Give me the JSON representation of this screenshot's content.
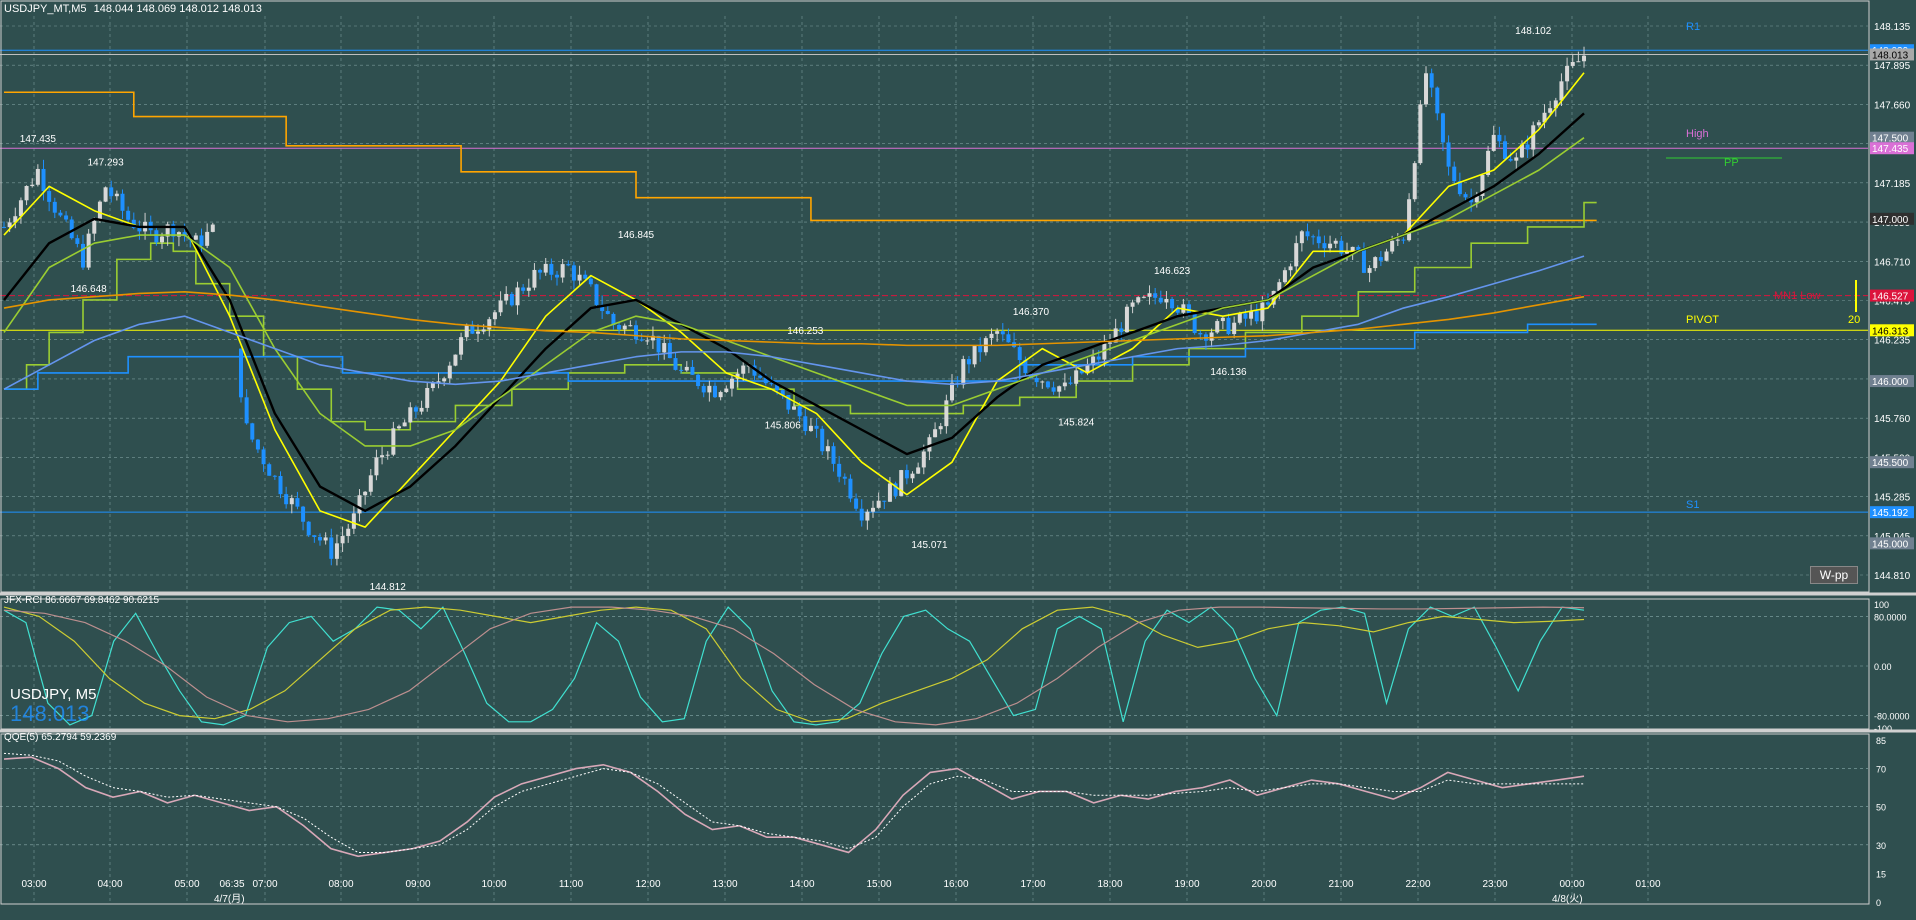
{
  "main_header": {
    "symbol": "USDJPY_MT,M5",
    "ohlc": "148.044 148.069 148.012 148.013"
  },
  "symbol_overlay": {
    "label": "USDJPY, M5",
    "price": "148.013"
  },
  "wpp_button": "W-pp",
  "rci_header": "JFX-RCI 86.6667 69.8462 90.6215",
  "qqe_header": "QQE(5) 65.2794 59.2369",
  "x_axis": {
    "labels": [
      "03:00",
      "04:00",
      "05:00",
      "06:35",
      "07:00",
      "08:00",
      "09:00",
      "10:00",
      "11:00",
      "12:00",
      "13:00",
      "14:00",
      "15:00",
      "16:00",
      "17:00",
      "18:00",
      "19:00",
      "20:00",
      "21:00",
      "22:00",
      "23:00",
      "00:00",
      "01:00"
    ],
    "date_labels": [
      "4/7(月)",
      "4/8(火)"
    ]
  },
  "price_axis": {
    "ticks": [
      "148.135",
      "147.895",
      "147.660",
      "147.425",
      "147.185",
      "146.950",
      "146.710",
      "146.475",
      "146.235",
      "146.000",
      "145.760",
      "145.520",
      "145.285",
      "145.045",
      "144.810"
    ]
  },
  "price_tags": [
    {
      "text": "148.039",
      "color": "#1e90ff"
    },
    {
      "text": "148.013",
      "color": "#a9a9a9"
    },
    {
      "text": "147.500",
      "color": "#708090"
    },
    {
      "text": "147.435",
      "color": "#da70d6"
    },
    {
      "text": "147.000",
      "color": "#2f2f2f"
    },
    {
      "text": "146.527",
      "color": "#dc143c"
    },
    {
      "text": "146.313",
      "color": "#ffff00"
    },
    {
      "text": "146.000",
      "color": "#708090"
    },
    {
      "text": "145.500",
      "color": "#708090"
    },
    {
      "text": "145.192",
      "color": "#1e90ff"
    },
    {
      "text": "145.000",
      "color": "#708090"
    }
  ],
  "pivot_labels": {
    "r1": "R1",
    "high": "High",
    "pp": "PP",
    "mn_low": "MN1 Low",
    "pivot": "PIVOT",
    "s1": "S1",
    "pivot_count": "20"
  },
  "rci_axis": [
    "100",
    "80.0000",
    "0.00",
    "-80.0000",
    "-100"
  ],
  "qqe_axis": [
    "85",
    "70",
    "50",
    "30",
    "15",
    "0"
  ],
  "chart_data": {
    "type": "candlestick",
    "title": "USDJPY_MT,M5",
    "ylim": [
      144.7,
      148.25
    ],
    "swing_labels": [
      {
        "x": "03:00",
        "text": "147.435",
        "value": 147.435
      },
      {
        "x": "04:00",
        "text": "147.293",
        "value": 147.293
      },
      {
        "x": "03:45",
        "text": "146.648",
        "value": 146.648
      },
      {
        "x": "08:10",
        "text": "144.812",
        "value": 144.812
      },
      {
        "x": "11:50",
        "text": "146.845",
        "value": 146.845
      },
      {
        "x": "14:20",
        "text": "146.253",
        "value": 146.253
      },
      {
        "x": "14:00",
        "text": "145.806",
        "value": 145.806
      },
      {
        "x": "16:10",
        "text": "145.071",
        "value": 145.071
      },
      {
        "x": "17:40",
        "text": "146.370",
        "value": 146.37
      },
      {
        "x": "18:20",
        "text": "145.824",
        "value": 145.824
      },
      {
        "x": "19:45",
        "text": "146.623",
        "value": 146.623
      },
      {
        "x": "20:35",
        "text": "146.136",
        "value": 146.136
      },
      {
        "x": "01:05",
        "text": "148.102",
        "value": 148.102
      }
    ],
    "close_path": [
      {
        "t": 0,
        "v": 146.95
      },
      {
        "t": 6,
        "v": 147.3
      },
      {
        "t": 10,
        "v": 147.0
      },
      {
        "t": 14,
        "v": 146.75
      },
      {
        "t": 18,
        "v": 147.2
      },
      {
        "t": 22,
        "v": 147.0
      },
      {
        "t": 26,
        "v": 146.9
      },
      {
        "t": 30,
        "v": 146.95
      },
      {
        "t": 34,
        "v": 146.85
      },
      {
        "t": 38,
        "v": 146.95
      },
      {
        "t": 43,
        "v": 145.7
      },
      {
        "t": 48,
        "v": 145.4
      },
      {
        "t": 54,
        "v": 145.1
      },
      {
        "t": 58,
        "v": 144.95
      },
      {
        "t": 62,
        "v": 145.15
      },
      {
        "t": 66,
        "v": 145.5
      },
      {
        "t": 70,
        "v": 145.7
      },
      {
        "t": 76,
        "v": 145.95
      },
      {
        "t": 82,
        "v": 146.3
      },
      {
        "t": 88,
        "v": 146.45
      },
      {
        "t": 94,
        "v": 146.65
      },
      {
        "t": 100,
        "v": 146.7
      },
      {
        "t": 104,
        "v": 146.55
      },
      {
        "t": 108,
        "v": 146.35
      },
      {
        "t": 114,
        "v": 146.3
      },
      {
        "t": 120,
        "v": 146.05
      },
      {
        "t": 126,
        "v": 145.95
      },
      {
        "t": 132,
        "v": 146.1
      },
      {
        "t": 136,
        "v": 145.95
      },
      {
        "t": 142,
        "v": 145.75
      },
      {
        "t": 148,
        "v": 145.45
      },
      {
        "t": 152,
        "v": 145.2
      },
      {
        "t": 158,
        "v": 145.35
      },
      {
        "t": 164,
        "v": 145.6
      },
      {
        "t": 170,
        "v": 146.1
      },
      {
        "t": 176,
        "v": 146.3
      },
      {
        "t": 182,
        "v": 146.05
      },
      {
        "t": 188,
        "v": 145.95
      },
      {
        "t": 194,
        "v": 146.15
      },
      {
        "t": 200,
        "v": 146.45
      },
      {
        "t": 206,
        "v": 146.55
      },
      {
        "t": 212,
        "v": 146.3
      },
      {
        "t": 218,
        "v": 146.35
      },
      {
        "t": 224,
        "v": 146.45
      },
      {
        "t": 230,
        "v": 146.9
      },
      {
        "t": 236,
        "v": 146.85
      },
      {
        "t": 242,
        "v": 146.7
      },
      {
        "t": 248,
        "v": 146.9
      },
      {
        "t": 252,
        "v": 147.9
      },
      {
        "t": 256,
        "v": 147.3
      },
      {
        "t": 260,
        "v": 147.1
      },
      {
        "t": 264,
        "v": 147.5
      },
      {
        "t": 268,
        "v": 147.35
      },
      {
        "t": 272,
        "v": 147.6
      },
      {
        "t": 276,
        "v": 147.85
      },
      {
        "t": 280,
        "v": 148.01
      }
    ],
    "moving_averages": [
      {
        "color": "#ffff00",
        "values": [
          146.9,
          147.2,
          147.05,
          146.95,
          146.95,
          146.4,
          145.7,
          145.2,
          145.1,
          145.4,
          145.7,
          146.0,
          146.4,
          146.65,
          146.5,
          146.3,
          146.05,
          145.95,
          145.8,
          145.5,
          145.3,
          145.5,
          146.0,
          146.2,
          146.05,
          146.2,
          146.45,
          146.4,
          146.45,
          146.8,
          146.8,
          146.9,
          147.2,
          147.3,
          147.55,
          147.9
        ]
      },
      {
        "color": "#000000",
        "values": [
          146.5,
          146.85,
          147.0,
          146.95,
          146.95,
          146.5,
          145.8,
          145.35,
          145.2,
          145.35,
          145.6,
          145.9,
          146.2,
          146.45,
          146.5,
          146.35,
          146.2,
          146.0,
          145.85,
          145.7,
          145.55,
          145.65,
          145.9,
          146.1,
          146.2,
          146.3,
          146.4,
          146.45,
          146.5,
          146.7,
          146.8,
          146.9,
          147.05,
          147.2,
          147.4,
          147.65
        ]
      },
      {
        "color": "#9acd32",
        "values": [
          146.3,
          146.7,
          146.85,
          146.9,
          146.9,
          146.7,
          146.2,
          145.8,
          145.6,
          145.6,
          145.7,
          145.9,
          146.1,
          146.3,
          146.4,
          146.35,
          146.25,
          146.15,
          146.05,
          145.95,
          145.85,
          145.85,
          145.95,
          146.05,
          146.15,
          146.25,
          146.35,
          146.45,
          146.5,
          146.65,
          146.8,
          146.9,
          147.0,
          147.15,
          147.3,
          147.5
        ]
      },
      {
        "color": "#6495ed",
        "values": [
          145.95,
          146.1,
          146.25,
          146.35,
          146.4,
          146.3,
          146.2,
          146.1,
          146.05,
          146.0,
          145.98,
          146.0,
          146.05,
          146.1,
          146.15,
          146.18,
          146.18,
          146.15,
          146.1,
          146.05,
          146.0,
          145.98,
          146.0,
          146.05,
          146.1,
          146.15,
          146.2,
          146.22,
          146.25,
          146.3,
          146.35,
          146.45,
          146.52,
          146.6,
          146.68,
          146.77
        ]
      },
      {
        "color": "#e59400",
        "values": [
          146.45,
          146.5,
          146.52,
          146.54,
          146.55,
          146.53,
          146.5,
          146.46,
          146.42,
          146.38,
          146.35,
          146.33,
          146.31,
          146.3,
          146.28,
          146.26,
          146.25,
          146.24,
          146.23,
          146.23,
          146.22,
          146.22,
          146.22,
          146.23,
          146.24,
          146.25,
          146.26,
          146.27,
          146.28,
          146.3,
          146.32,
          146.35,
          146.38,
          146.42,
          146.47,
          146.52
        ]
      }
    ],
    "step_lines": [
      {
        "color": "#ffa500",
        "steps": [
          [
            0,
            147.78
          ],
          [
            23,
            147.63
          ],
          [
            50,
            147.45
          ],
          [
            81,
            147.29
          ],
          [
            112,
            147.13
          ],
          [
            143,
            146.99
          ],
          [
            175,
            146.99
          ]
        ]
      },
      {
        "color": "#9acd32",
        "steps": [
          [
            0,
            145.95
          ],
          [
            4,
            146.1
          ],
          [
            8,
            146.3
          ],
          [
            14,
            146.5
          ],
          [
            20,
            146.75
          ],
          [
            26,
            146.85
          ],
          [
            30,
            146.8
          ],
          [
            34,
            146.6
          ],
          [
            40,
            146.4
          ],
          [
            46,
            146.15
          ],
          [
            52,
            145.95
          ],
          [
            58,
            145.75
          ],
          [
            64,
            145.7
          ],
          [
            72,
            145.75
          ],
          [
            80,
            145.85
          ],
          [
            90,
            145.95
          ],
          [
            100,
            146.05
          ],
          [
            110,
            146.1
          ],
          [
            120,
            146.05
          ],
          [
            130,
            145.95
          ],
          [
            140,
            145.85
          ],
          [
            150,
            145.8
          ],
          [
            160,
            145.8
          ],
          [
            170,
            145.85
          ],
          [
            180,
            145.9
          ],
          [
            190,
            146.0
          ],
          [
            200,
            146.1
          ],
          [
            210,
            146.2
          ],
          [
            220,
            146.3
          ],
          [
            230,
            146.4
          ],
          [
            240,
            146.55
          ],
          [
            250,
            146.7
          ],
          [
            260,
            146.85
          ],
          [
            270,
            146.95
          ],
          [
            280,
            147.1
          ]
        ]
      },
      {
        "color": "#1e90ff",
        "steps": [
          [
            0,
            145.95
          ],
          [
            6,
            146.05
          ],
          [
            22,
            146.15
          ],
          [
            60,
            146.05
          ],
          [
            100,
            146.0
          ],
          [
            140,
            146.0
          ],
          [
            180,
            146.1
          ],
          [
            200,
            146.15
          ],
          [
            220,
            146.2
          ],
          [
            250,
            146.3
          ],
          [
            270,
            146.35
          ],
          [
            280,
            146.35
          ]
        ]
      }
    ],
    "horizontal_levels": [
      {
        "value": 148.039,
        "color": "#1e90ff"
      },
      {
        "value": 148.013,
        "color": "#c0c0c0"
      },
      {
        "value": 147.435,
        "color": "#da70d6"
      },
      {
        "value": 146.527,
        "color": "#dc143c",
        "dashed": true
      },
      {
        "value": 146.313,
        "color": "#ffff00"
      },
      {
        "value": 145.192,
        "color": "#1e90ff"
      }
    ],
    "rci": {
      "ylim": [
        -100,
        100
      ],
      "series": [
        {
          "color": "#40e0d0",
          "values": [
            90,
            70,
            -60,
            -95,
            -80,
            40,
            85,
            20,
            -40,
            -90,
            -95,
            -80,
            30,
            70,
            80,
            40,
            60,
            95,
            90,
            60,
            95,
            20,
            -60,
            -90,
            -90,
            -70,
            -20,
            70,
            40,
            -50,
            -90,
            -85,
            40,
            95,
            60,
            -40,
            -90,
            -95,
            -90,
            -60,
            20,
            80,
            90,
            60,
            40,
            -20,
            -80,
            -70,
            60,
            80,
            60,
            -90,
            40,
            90,
            70,
            95,
            60,
            -20,
            -80,
            70,
            90,
            95,
            85,
            -60,
            60,
            95,
            80,
            95,
            30,
            -40,
            40,
            95,
            90
          ]
        },
        {
          "color": "#cccc33",
          "values": [
            95,
            80,
            40,
            -20,
            -60,
            -80,
            -85,
            -70,
            -40,
            10,
            60,
            90,
            95,
            90,
            80,
            70,
            80,
            90,
            95,
            90,
            60,
            -20,
            -70,
            -90,
            -85,
            -60,
            -40,
            -20,
            10,
            60,
            90,
            95,
            80,
            50,
            30,
            40,
            60,
            70,
            65,
            55,
            70,
            80,
            75,
            70,
            72,
            75
          ]
        },
        {
          "color": "#bc8f8f",
          "values": [
            90,
            85,
            70,
            40,
            0,
            -50,
            -80,
            -90,
            -85,
            -70,
            -40,
            10,
            60,
            85,
            95,
            95,
            90,
            80,
            60,
            20,
            -30,
            -70,
            -90,
            -95,
            -85,
            -60,
            -20,
            30,
            70,
            90,
            95,
            95,
            94,
            93,
            92,
            92,
            93,
            94,
            95,
            94
          ]
        }
      ]
    },
    "qqe": {
      "ylim": [
        0,
        85
      ],
      "series": [
        {
          "color": "#d8a8b8",
          "values": [
            75,
            76,
            70,
            60,
            55,
            58,
            52,
            56,
            52,
            48,
            50,
            40,
            28,
            24,
            26,
            28,
            32,
            42,
            55,
            62,
            66,
            70,
            72,
            68,
            58,
            46,
            38,
            40,
            34,
            34,
            30,
            26,
            38,
            56,
            68,
            70,
            62,
            54,
            58,
            58,
            52,
            56,
            54,
            58,
            60,
            64,
            56,
            60,
            64,
            62,
            58,
            54,
            60,
            68,
            64,
            60,
            62,
            64,
            66
          ]
        },
        {
          "color": "#ffffff",
          "dashed": true,
          "values": [
            78,
            77,
            74,
            66,
            60,
            58,
            55,
            56,
            54,
            52,
            50,
            44,
            34,
            26,
            26,
            28,
            30,
            38,
            50,
            58,
            62,
            66,
            70,
            68,
            62,
            52,
            42,
            40,
            36,
            34,
            32,
            28,
            34,
            50,
            62,
            66,
            64,
            58,
            58,
            58,
            56,
            56,
            56,
            57,
            58,
            60,
            58,
            60,
            62,
            62,
            60,
            58,
            58,
            64,
            62,
            62,
            62,
            62,
            62
          ]
        }
      ]
    }
  }
}
